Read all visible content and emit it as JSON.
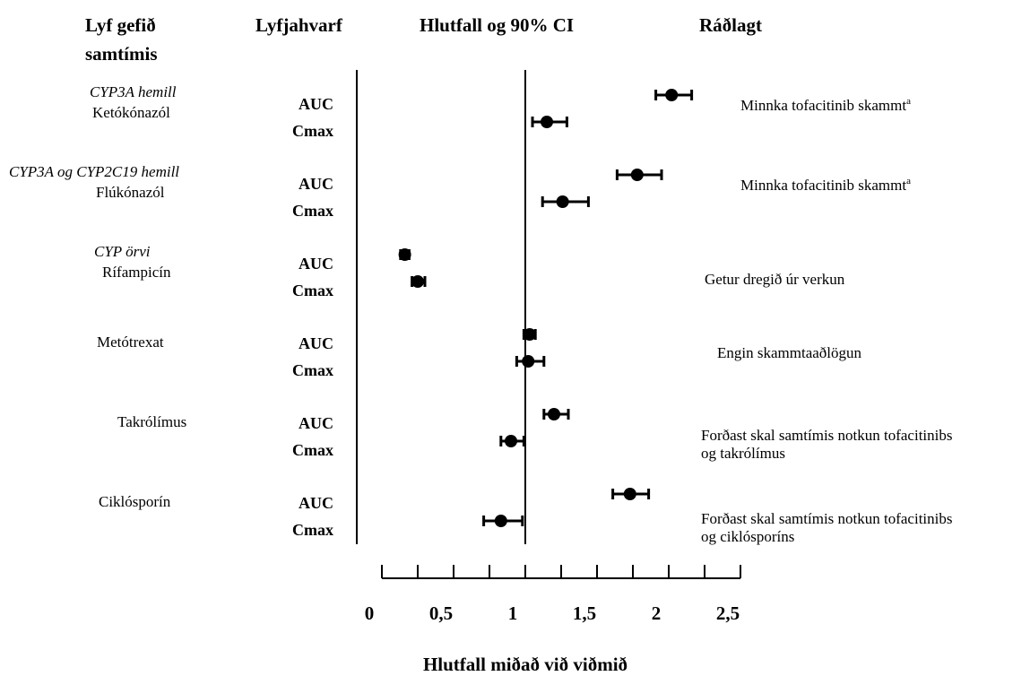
{
  "chart_data": {
    "type": "forest",
    "headers": {
      "drug": [
        "Lyf gefið",
        "samtímis"
      ],
      "parameter": "Lyfjahvarf",
      "ratio": "Hlutfall og 90% CI",
      "recommendation": "Ráðlagt"
    },
    "xlabel": "Hlutfall miðað við viðmið",
    "xlim": [
      0,
      2.5
    ],
    "xticks": [
      0,
      {
        "value": 0.5,
        "label": "0,5"
      },
      1,
      {
        "value": 1.5,
        "label": "1,5"
      },
      2,
      {
        "value": 2.5,
        "label": "2,5"
      }
    ],
    "xminor_ticks": [
      0.25,
      0.75,
      1.25,
      1.75,
      2.25
    ],
    "reference": 1,
    "color": "#000000",
    "groups": [
      {
        "class": "CYP3A hemill",
        "drug": "Ketókónazól",
        "recommendation": [
          "Minnka tofacitinib skammt"
        ],
        "footnote": "a",
        "rows": [
          {
            "param": "AUC",
            "value": 2.02,
            "ci": [
              1.91,
              2.16
            ]
          },
          {
            "param": "Cmax",
            "value": 1.15,
            "ci": [
              1.05,
              1.29
            ]
          }
        ]
      },
      {
        "class": "CYP3A og CYP2C19 hemill",
        "drug": "Flúkónazól",
        "recommendation": [
          "Minnka tofacitinib skammt"
        ],
        "footnote": "a",
        "rows": [
          {
            "param": "AUC",
            "value": 1.78,
            "ci": [
              1.64,
              1.95
            ]
          },
          {
            "param": "Cmax",
            "value": 1.26,
            "ci": [
              1.12,
              1.44
            ]
          }
        ]
      },
      {
        "class": "CYP örvi",
        "drug": "Rífampicín",
        "recommendation": [
          "Getur dregið úr verkun"
        ],
        "rows": [
          {
            "param": "AUC",
            "value": 0.16,
            "ci": [
              0.13,
              0.19
            ]
          },
          {
            "param": "Cmax",
            "value": 0.25,
            "ci": [
              0.21,
              0.3
            ]
          }
        ]
      },
      {
        "drug": "Metótrexat",
        "recommendation": [
          "Engin skammtaaðlögun"
        ],
        "rows": [
          {
            "param": "AUC",
            "value": 1.03,
            "ci": [
              0.99,
              1.07
            ]
          },
          {
            "param": "Cmax",
            "value": 1.02,
            "ci": [
              0.94,
              1.13
            ]
          }
        ]
      },
      {
        "drug": "Takrólímus",
        "recommendation": [
          "Forðast skal samtímis notkun tofacitinibs",
          "og takrólímus"
        ],
        "rows": [
          {
            "param": "AUC",
            "value": 1.2,
            "ci": [
              1.13,
              1.3
            ]
          },
          {
            "param": "Cmax",
            "value": 0.9,
            "ci": [
              0.83,
              0.99
            ]
          }
        ]
      },
      {
        "drug": "Ciklósporín",
        "recommendation": [
          "Forðast skal samtímis notkun tofacitinibs",
          "og ciklósporíns"
        ],
        "rows": [
          {
            "param": "AUC",
            "value": 1.73,
            "ci": [
              1.61,
              1.86
            ]
          },
          {
            "param": "Cmax",
            "value": 0.83,
            "ci": [
              0.71,
              0.98
            ]
          }
        ]
      }
    ]
  }
}
